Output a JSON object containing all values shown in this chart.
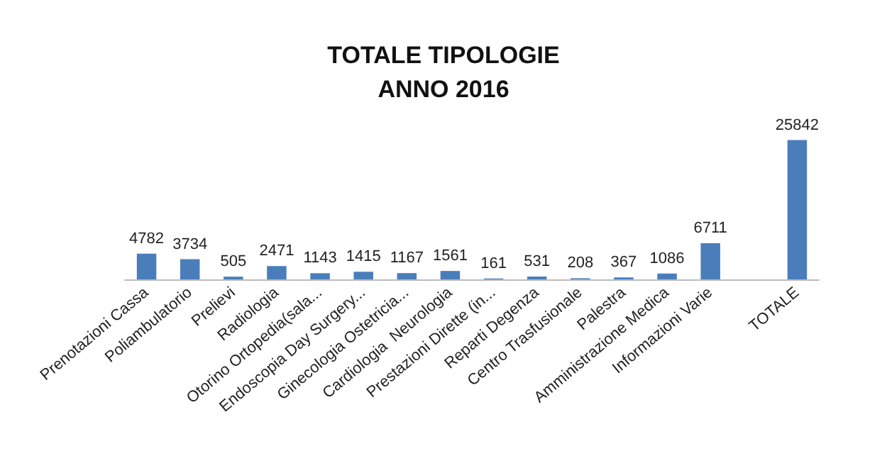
{
  "chart_data": {
    "type": "bar",
    "title": "TOTALE TIPOLOGIE\nANNO 2016",
    "categories": [
      "Prenotazioni Cassa",
      "Poliambulatorio",
      "Prelievi",
      "Radiologia",
      "Otorino Ortopedia(sala...",
      "Endoscopia Day Surgery...",
      "Ginecologia Ostetricia...",
      "Cardiologia  Neurologia",
      "Prestazioni Dirette (in...",
      "Reparti Degenza",
      "Centro Trasfusionale",
      "Palestra",
      "Amministrazione Medica",
      "Informazioni Varie",
      null,
      "TOTALE"
    ],
    "values": [
      4782,
      3734,
      505,
      2471,
      1143,
      1415,
      1167,
      1561,
      161,
      531,
      208,
      367,
      1086,
      6711,
      null,
      25842
    ],
    "color": "#4a7ebb",
    "data_labels": true
  }
}
